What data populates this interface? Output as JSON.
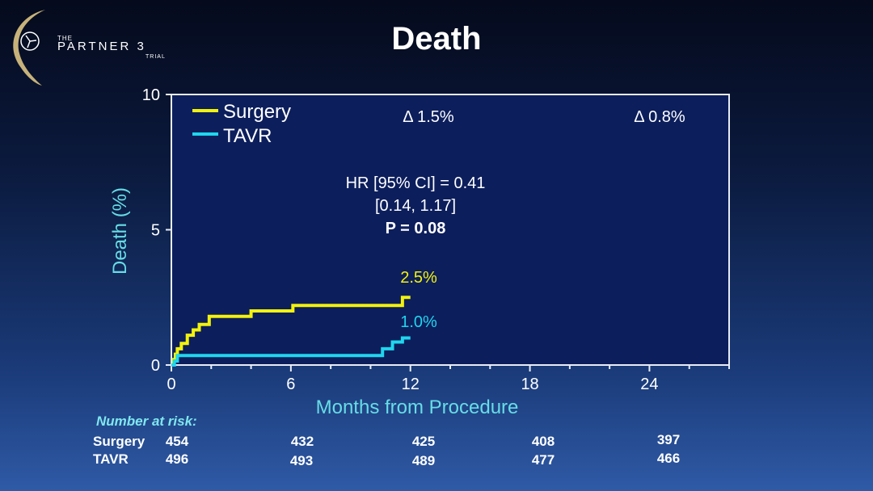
{
  "logo": {
    "the": "THE",
    "partner": "PARTNER 3",
    "trial": "TRIAL"
  },
  "slide": {
    "title": "Death"
  },
  "colors": {
    "surgery": "#f2f20c",
    "tavr": "#1fd6ee",
    "plot_bg": "#0c1e5c",
    "axis_label": "#66dde6"
  },
  "chart_data": {
    "type": "line",
    "title": "Death",
    "xlabel": "Months from Procedure",
    "ylabel": "Death (%)",
    "xlim": [
      0,
      28
    ],
    "ylim": [
      0,
      10
    ],
    "xticks": [
      0,
      6,
      12,
      18,
      24
    ],
    "yticks": [
      0,
      5,
      10
    ],
    "legend": {
      "placement": "top-left",
      "entries": [
        "Surgery",
        "TAVR"
      ]
    },
    "series": [
      {
        "name": "Surgery",
        "step": true,
        "x": [
          0,
          0.1,
          0.2,
          0.3,
          0.5,
          0.8,
          1.1,
          1.4,
          1.9,
          2.3,
          4.0,
          6.1,
          11.6,
          12.0
        ],
        "y": [
          0,
          0.2,
          0.4,
          0.6,
          0.8,
          1.1,
          1.3,
          1.5,
          1.8,
          1.8,
          2.0,
          2.2,
          2.5,
          2.5
        ],
        "end_label": "2.5%"
      },
      {
        "name": "TAVR",
        "step": true,
        "x": [
          0,
          0.15,
          0.3,
          10.2,
          10.6,
          11.1,
          11.6,
          12.0
        ],
        "y": [
          0,
          0.15,
          0.35,
          0.35,
          0.6,
          0.85,
          1.0,
          1.0
        ],
        "end_label": "1.0%"
      }
    ],
    "annotations": {
      "delta_12": "Δ 1.5%",
      "delta_24": "Δ 0.8%",
      "hr_line1": "HR [95% CI] = 0.41",
      "hr_line2": "[0.14, 1.17]",
      "p_value": "P = 0.08"
    }
  },
  "risk_table": {
    "title": "Number at risk:",
    "rows": [
      {
        "label": "Surgery",
        "values": [
          "454",
          "432",
          "425",
          "408",
          "397"
        ]
      },
      {
        "label": "TAVR",
        "values": [
          "496",
          "493",
          "489",
          "477",
          "466"
        ]
      }
    ]
  }
}
